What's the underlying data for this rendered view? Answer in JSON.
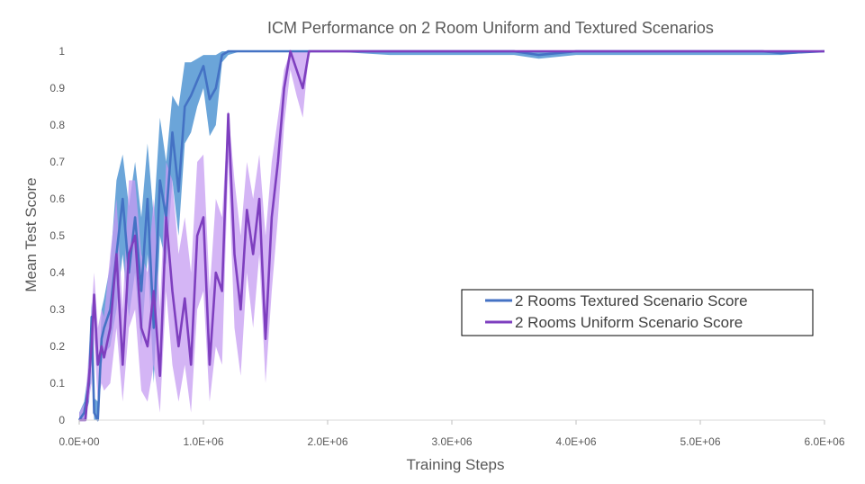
{
  "chart_data": {
    "type": "line",
    "title": "ICM Performance on 2 Room Uniform and Textured Scenarios",
    "xlabel": "Training Steps",
    "ylabel": "Mean Test Score",
    "xlim": [
      0,
      6000000
    ],
    "ylim": [
      0,
      1
    ],
    "x_ticks": [
      0,
      1000000,
      2000000,
      3000000,
      4000000,
      5000000,
      6000000
    ],
    "x_tick_labels": [
      "0.0E+00",
      "1.0E+06",
      "2.0E+06",
      "3.0E+06",
      "4.0E+06",
      "5.0E+06",
      "6.0E+06"
    ],
    "y_ticks": [
      0,
      0.1,
      0.2,
      0.3,
      0.4,
      0.5,
      0.6,
      0.7,
      0.8,
      0.9,
      1
    ],
    "y_tick_labels": [
      "0",
      "0.1",
      "0.2",
      "0.3",
      "0.4",
      "0.5",
      "0.6",
      "0.7",
      "0.8",
      "0.9",
      "1"
    ],
    "grid": false,
    "legend_position": "center-right",
    "series": [
      {
        "name": "2 Rooms Textured Scenario Score",
        "color": "#4472c4",
        "band_color": "#5b9bd5",
        "x": [
          0,
          40000,
          80000,
          100000,
          120000,
          150000,
          180000,
          200000,
          250000,
          300000,
          350000,
          400000,
          450000,
          500000,
          550000,
          600000,
          650000,
          700000,
          750000,
          800000,
          850000,
          900000,
          950000,
          1000000,
          1050000,
          1100000,
          1150000,
          1200000,
          1300000,
          1500000,
          1800000,
          2000000,
          2500000,
          3000000,
          3500000,
          3700000,
          4000000,
          4500000,
          5000000,
          5500000,
          5650000,
          6000000
        ],
        "y": [
          0,
          0.02,
          0.1,
          0.28,
          0.02,
          0.0,
          0.22,
          0.25,
          0.3,
          0.45,
          0.6,
          0.4,
          0.55,
          0.35,
          0.6,
          0.25,
          0.65,
          0.55,
          0.78,
          0.62,
          0.85,
          0.88,
          0.92,
          0.96,
          0.87,
          0.9,
          0.99,
          1.0,
          1.0,
          1.0,
          1.0,
          1.0,
          1.0,
          1.0,
          1.0,
          0.99,
          1.0,
          1.0,
          1.0,
          1.0,
          0.995,
          1.0
        ],
        "y_upper": [
          0.02,
          0.05,
          0.15,
          0.32,
          0.06,
          0.05,
          0.3,
          0.33,
          0.42,
          0.65,
          0.72,
          0.58,
          0.7,
          0.55,
          0.75,
          0.55,
          0.82,
          0.7,
          0.88,
          0.85,
          0.97,
          0.97,
          0.98,
          0.99,
          0.99,
          0.99,
          1.0,
          1.0,
          1.0,
          1.0,
          1.0,
          1.0,
          1.0,
          1.0,
          1.0,
          1.0,
          1.0,
          1.0,
          1.0,
          1.0,
          1.0,
          1.0
        ],
        "y_lower": [
          0.0,
          0.0,
          0.05,
          0.22,
          0.0,
          0.0,
          0.15,
          0.18,
          0.2,
          0.3,
          0.45,
          0.28,
          0.4,
          0.2,
          0.45,
          0.1,
          0.5,
          0.42,
          0.65,
          0.5,
          0.75,
          0.78,
          0.85,
          0.9,
          0.77,
          0.8,
          0.97,
          0.99,
          1.0,
          1.0,
          1.0,
          1.0,
          0.99,
          0.99,
          0.99,
          0.98,
          0.99,
          0.99,
          0.99,
          0.99,
          0.99,
          1.0
        ]
      },
      {
        "name": "2 Rooms Uniform Scenario Score",
        "color": "#7e3fbf",
        "band_color": "#c59cf2",
        "x": [
          0,
          50000,
          100000,
          120000,
          150000,
          180000,
          200000,
          250000,
          300000,
          350000,
          400000,
          450000,
          500000,
          550000,
          600000,
          650000,
          700000,
          750000,
          800000,
          850000,
          900000,
          950000,
          1000000,
          1050000,
          1100000,
          1150000,
          1200000,
          1250000,
          1300000,
          1350000,
          1400000,
          1450000,
          1500000,
          1550000,
          1600000,
          1650000,
          1700000,
          1750000,
          1800000,
          1850000,
          2000000,
          3000000,
          4000000,
          5000000,
          6000000
        ],
        "y": [
          0,
          0.0,
          0.2,
          0.34,
          0.15,
          0.2,
          0.17,
          0.25,
          0.45,
          0.15,
          0.45,
          0.5,
          0.25,
          0.2,
          0.35,
          0.12,
          0.55,
          0.35,
          0.2,
          0.33,
          0.15,
          0.5,
          0.55,
          0.15,
          0.4,
          0.35,
          0.83,
          0.45,
          0.3,
          0.57,
          0.45,
          0.6,
          0.22,
          0.55,
          0.7,
          0.9,
          1.0,
          0.95,
          0.9,
          1.0,
          1.0,
          1.0,
          1.0,
          1.0,
          1.0
        ],
        "y_upper": [
          0.02,
          0.05,
          0.3,
          0.4,
          0.25,
          0.3,
          0.28,
          0.45,
          0.6,
          0.3,
          0.65,
          0.65,
          0.45,
          0.4,
          0.6,
          0.3,
          0.7,
          0.65,
          0.45,
          0.55,
          0.4,
          0.7,
          0.72,
          0.35,
          0.6,
          0.55,
          0.84,
          0.65,
          0.5,
          0.7,
          0.6,
          0.72,
          0.5,
          0.7,
          0.82,
          0.95,
          1.0,
          1.0,
          1.0,
          1.0,
          1.0,
          1.0,
          1.0,
          1.0,
          1.0
        ],
        "y_lower": [
          0.0,
          0.0,
          0.1,
          0.22,
          0.05,
          0.1,
          0.08,
          0.1,
          0.25,
          0.05,
          0.25,
          0.3,
          0.08,
          0.05,
          0.15,
          0.02,
          0.35,
          0.15,
          0.05,
          0.15,
          0.02,
          0.3,
          0.35,
          0.05,
          0.2,
          0.15,
          0.7,
          0.25,
          0.12,
          0.4,
          0.25,
          0.45,
          0.1,
          0.35,
          0.55,
          0.8,
          0.95,
          0.88,
          0.82,
          1.0,
          1.0,
          1.0,
          1.0,
          1.0,
          1.0
        ]
      }
    ]
  }
}
